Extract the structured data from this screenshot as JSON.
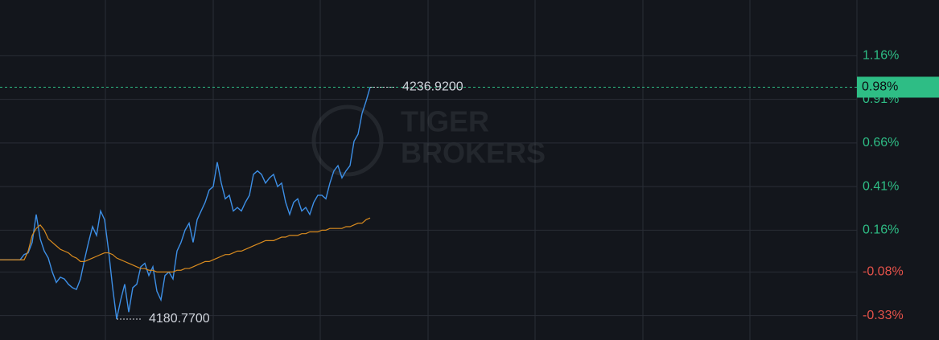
{
  "chart_data": {
    "type": "line",
    "watermark": [
      "TIGER",
      "BROKERS"
    ],
    "ylim": [
      -0.47,
      1.48
    ],
    "yticks": [
      {
        "value": 1.16,
        "label": "1.16%"
      },
      {
        "value": 0.91,
        "label": "0.91%"
      },
      {
        "value": 0.66,
        "label": "0.66%"
      },
      {
        "value": 0.41,
        "label": "0.41%"
      },
      {
        "value": 0.16,
        "label": "0.16%"
      },
      {
        "value": -0.08,
        "label": "-0.08%"
      },
      {
        "value": -0.33,
        "label": "-0.33%"
      }
    ],
    "grid": true,
    "up_color": "#2ebd85",
    "down_color": "#e5524a",
    "current": {
      "value": 0.98,
      "label": "0.98%"
    },
    "high_label": "4236.9200",
    "low_label": "4180.7700",
    "series": [
      {
        "color": "#3d8fe6",
        "values": [
          -0.01,
          -0.01,
          -0.01,
          -0.01,
          -0.01,
          -0.01,
          0.02,
          0.03,
          0.09,
          0.25,
          0.11,
          0.04,
          0.0,
          -0.08,
          -0.14,
          -0.11,
          -0.12,
          -0.15,
          -0.17,
          -0.18,
          -0.12,
          -0.01,
          0.09,
          0.18,
          0.13,
          0.27,
          0.22,
          0.04,
          -0.17,
          -0.35,
          -0.24,
          -0.15,
          -0.31,
          -0.17,
          -0.15,
          -0.05,
          -0.03,
          -0.1,
          -0.05,
          -0.19,
          -0.24,
          -0.1,
          -0.08,
          -0.12,
          0.04,
          0.09,
          0.16,
          0.2,
          0.09,
          0.22,
          0.27,
          0.32,
          0.39,
          0.41,
          0.55,
          0.43,
          0.34,
          0.36,
          0.27,
          0.29,
          0.27,
          0.32,
          0.36,
          0.48,
          0.5,
          0.48,
          0.43,
          0.46,
          0.48,
          0.41,
          0.43,
          0.32,
          0.25,
          0.32,
          0.34,
          0.27,
          0.29,
          0.25,
          0.32,
          0.36,
          0.36,
          0.34,
          0.43,
          0.5,
          0.53,
          0.46,
          0.5,
          0.53,
          0.67,
          0.71,
          0.83,
          0.9,
          0.98
        ]
      },
      {
        "color": "#d98b1f",
        "values": [
          -0.01,
          -0.01,
          -0.01,
          -0.01,
          -0.01,
          -0.01,
          -0.01,
          0.04,
          0.13,
          0.17,
          0.19,
          0.16,
          0.11,
          0.09,
          0.07,
          0.05,
          0.04,
          0.03,
          0.01,
          0.0,
          -0.02,
          -0.02,
          -0.01,
          0.0,
          0.01,
          0.02,
          0.03,
          0.03,
          0.02,
          0.0,
          -0.01,
          -0.02,
          -0.03,
          -0.04,
          -0.05,
          -0.06,
          -0.06,
          -0.07,
          -0.07,
          -0.08,
          -0.08,
          -0.08,
          -0.08,
          -0.08,
          -0.07,
          -0.07,
          -0.06,
          -0.06,
          -0.05,
          -0.04,
          -0.03,
          -0.02,
          -0.02,
          -0.01,
          0.0,
          0.01,
          0.02,
          0.02,
          0.03,
          0.04,
          0.04,
          0.05,
          0.06,
          0.07,
          0.08,
          0.09,
          0.1,
          0.1,
          0.1,
          0.11,
          0.12,
          0.12,
          0.13,
          0.13,
          0.13,
          0.14,
          0.14,
          0.15,
          0.15,
          0.15,
          0.16,
          0.16,
          0.17,
          0.17,
          0.17,
          0.17,
          0.18,
          0.18,
          0.19,
          0.2,
          0.2,
          0.22,
          0.23
        ]
      }
    ]
  }
}
